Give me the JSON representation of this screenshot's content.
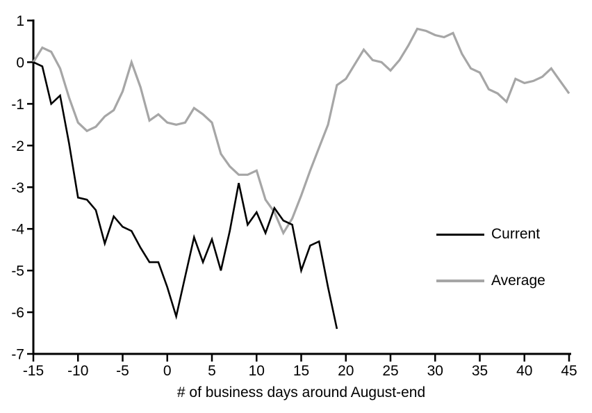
{
  "colors": {
    "current": "#000000",
    "average": "#a6a6a6",
    "axis": "#000000",
    "text": "#000000",
    "background": "#ffffff"
  },
  "legend": {
    "entries": [
      {
        "label": "Current",
        "color": "#000000"
      },
      {
        "label": "Average",
        "color": "#a6a6a6"
      }
    ]
  },
  "chart_data": {
    "type": "line",
    "title": "",
    "xlabel": "# of business days around August-end",
    "ylabel": "",
    "xlim": [
      -15,
      45
    ],
    "ylim": [
      -7,
      1
    ],
    "x_ticks": [
      -15,
      -10,
      -5,
      0,
      5,
      10,
      15,
      20,
      25,
      30,
      35,
      40,
      45
    ],
    "y_ticks": [
      1,
      0,
      -1,
      -2,
      -3,
      -4,
      -5,
      -6,
      -7
    ],
    "grid": false,
    "legend_position": "right-middle",
    "series": [
      {
        "name": "Current",
        "color": "#000000",
        "stroke_width": 2.6,
        "x": [
          -15,
          -14,
          -13,
          -12,
          -11,
          -10,
          -9,
          -8,
          -7,
          -6,
          -5,
          -4,
          -3,
          -2,
          -1,
          0,
          1,
          2,
          3,
          4,
          5,
          6,
          7,
          8,
          9,
          10,
          11,
          12,
          13,
          14,
          15,
          16,
          17,
          18,
          19
        ],
        "values": [
          0.0,
          -0.1,
          -1.0,
          -0.8,
          -1.95,
          -3.25,
          -3.3,
          -3.55,
          -4.35,
          -3.7,
          -3.95,
          -4.05,
          -4.45,
          -4.8,
          -4.8,
          -5.4,
          -6.1,
          -5.15,
          -4.2,
          -4.8,
          -4.25,
          -5.0,
          -4.05,
          -2.9,
          -3.9,
          -3.6,
          -4.1,
          -3.5,
          -3.8,
          -3.9,
          -5.0,
          -4.4,
          -4.3,
          -5.4,
          -6.4
        ]
      },
      {
        "name": "Average",
        "color": "#a6a6a6",
        "stroke_width": 3.2,
        "x": [
          -15,
          -14,
          -13,
          -12,
          -11,
          -10,
          -9,
          -8,
          -7,
          -6,
          -5,
          -4,
          -3,
          -2,
          -1,
          0,
          1,
          2,
          3,
          4,
          5,
          6,
          7,
          8,
          9,
          10,
          11,
          12,
          13,
          14,
          15,
          16,
          17,
          18,
          19,
          20,
          21,
          22,
          23,
          24,
          25,
          26,
          27,
          28,
          29,
          30,
          31,
          32,
          33,
          34,
          35,
          36,
          37,
          38,
          39,
          40,
          41,
          42,
          43,
          44,
          45
        ],
        "values": [
          0.0,
          0.35,
          0.25,
          -0.15,
          -0.85,
          -1.45,
          -1.65,
          -1.55,
          -1.3,
          -1.15,
          -0.7,
          0.0,
          -0.6,
          -1.4,
          -1.25,
          -1.45,
          -1.5,
          -1.45,
          -1.1,
          -1.25,
          -1.45,
          -2.2,
          -2.5,
          -2.7,
          -2.7,
          -2.6,
          -3.3,
          -3.6,
          -4.1,
          -3.75,
          -3.2,
          -2.6,
          -2.05,
          -1.5,
          -0.55,
          -0.4,
          -0.05,
          0.3,
          0.05,
          0.0,
          -0.2,
          0.05,
          0.4,
          0.8,
          0.75,
          0.65,
          0.6,
          0.7,
          0.2,
          -0.15,
          -0.25,
          -0.65,
          -0.75,
          -0.95,
          -0.4,
          -0.5,
          -0.45,
          -0.35,
          -0.15,
          -0.45,
          -0.75
        ]
      }
    ]
  }
}
